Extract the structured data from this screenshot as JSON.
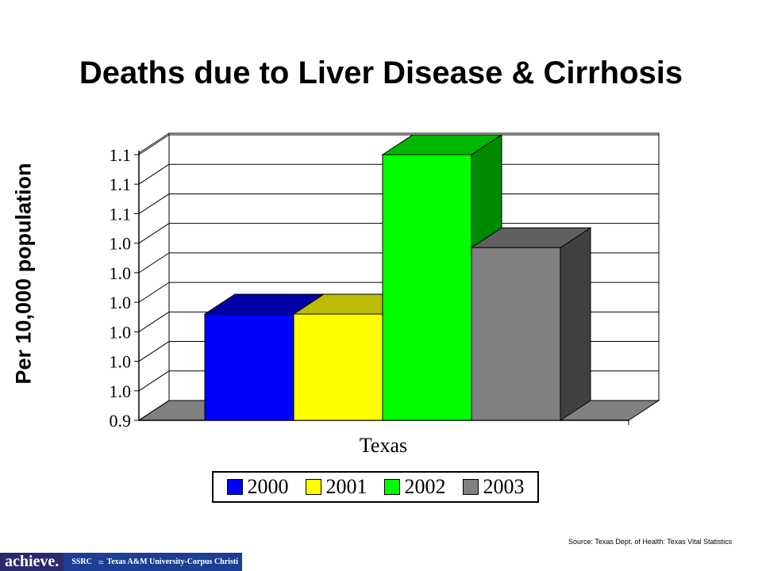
{
  "title": "Deaths due to Liver Disease & Cirrhosis",
  "source": "Source:   Texas Dept. of Health: Texas Vital Statistics",
  "footer": {
    "achieve": "achieve.",
    "ssrc": "SSRC",
    "university": "Texas A&M University-Corpus Christi"
  },
  "chart_data": {
    "type": "bar",
    "title": "Deaths due to Liver Disease & Cirrhosis",
    "ylabel": "Per 10,000 population",
    "xlabel": "",
    "categories": [
      "Texas"
    ],
    "ylim": [
      0.9,
      1.1
    ],
    "yticks": [
      "0.9",
      "1.0",
      "1.0",
      "1.0",
      "1.0",
      "1.0",
      "1.0",
      "1.1",
      "1.1",
      "1.1"
    ],
    "grid": true,
    "legend_position": "bottom",
    "series": [
      {
        "name": "2000",
        "values": [
          0.98
        ],
        "color": "#0000ff",
        "top": "#0000a8",
        "side": "#00007a"
      },
      {
        "name": "2001",
        "values": [
          0.98
        ],
        "color": "#ffff00",
        "top": "#bcbc00",
        "side": "#8a8a00"
      },
      {
        "name": "2002",
        "values": [
          1.1
        ],
        "color": "#00ff00",
        "top": "#00b800",
        "side": "#008a00"
      },
      {
        "name": "2003",
        "values": [
          1.03
        ],
        "color": "#808080",
        "top": "#606060",
        "side": "#404040"
      }
    ]
  }
}
